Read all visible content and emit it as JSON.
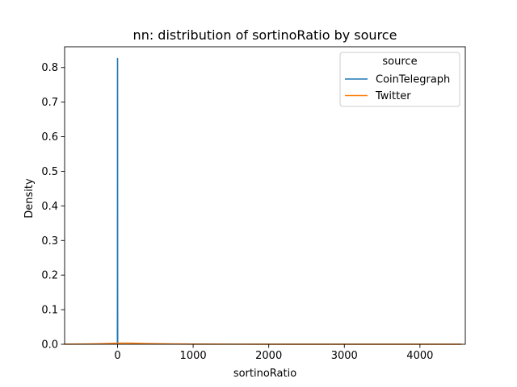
{
  "chart_data": {
    "type": "line",
    "title": "nn: distribution of sortinoRatio by source",
    "xlabel": "sortinoRatio",
    "ylabel": "Density",
    "xlim": [
      -700,
      4600
    ],
    "ylim": [
      0,
      0.86
    ],
    "xticks": [
      0,
      1000,
      2000,
      3000,
      4000
    ],
    "xtick_labels": [
      "0",
      "1000",
      "2000",
      "3000",
      "4000"
    ],
    "yticks": [
      0.0,
      0.1,
      0.2,
      0.3,
      0.4,
      0.5,
      0.6,
      0.7,
      0.8
    ],
    "ytick_labels": [
      "0.0",
      "0.1",
      "0.2",
      "0.3",
      "0.4",
      "0.5",
      "0.6",
      "0.7",
      "0.8"
    ],
    "grid": false,
    "legend": {
      "title": "source",
      "placement": "top-right"
    },
    "series": [
      {
        "name": "CoinTelegraph",
        "color": "#1f77b4",
        "x": [
          -5,
          -2,
          -1,
          -0.5,
          0,
          0.5,
          1,
          2,
          5
        ],
        "y": [
          0,
          0.005,
          0.2,
          0.7,
          0.826,
          0.7,
          0.2,
          0.005,
          0
        ]
      },
      {
        "name": "Twitter",
        "color": "#ff7f0e",
        "x": [
          -700,
          -400,
          -200,
          0,
          100,
          200,
          400,
          700,
          1000,
          1500,
          2000,
          2500,
          3000,
          3500,
          4000,
          4300,
          4550
        ],
        "y": [
          0.0003,
          0.0008,
          0.0015,
          0.003,
          0.0035,
          0.003,
          0.0018,
          0.0009,
          0.0005,
          0.0003,
          0.0002,
          0.0002,
          0.0002,
          0.0002,
          0.0002,
          0.0002,
          0.0001
        ]
      }
    ]
  }
}
